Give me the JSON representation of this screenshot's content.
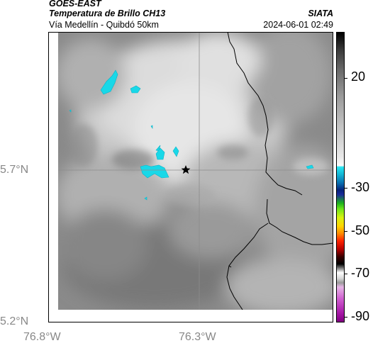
{
  "header": {
    "title_line1": "GOES-EAST",
    "title_line2": "Temperatura de Brillo CH13",
    "subtitle": "Vía Medellín - Quibdó 50km",
    "brand": "SIATA",
    "timestamp": "2024-06-01 02:49"
  },
  "map": {
    "lat_labels": [
      "5.7°N",
      "5.2°N"
    ],
    "lon_labels": [
      "76.8°W",
      "76.3°W"
    ],
    "marker": "star-marker"
  },
  "colorbar": {
    "labels": [
      "20",
      "-30",
      "-50",
      "-70",
      "-90"
    ]
  },
  "colors": {
    "cold_cloud": "#19d8e8",
    "border_line": "#000000",
    "grid_line": "#8c8c8c"
  }
}
